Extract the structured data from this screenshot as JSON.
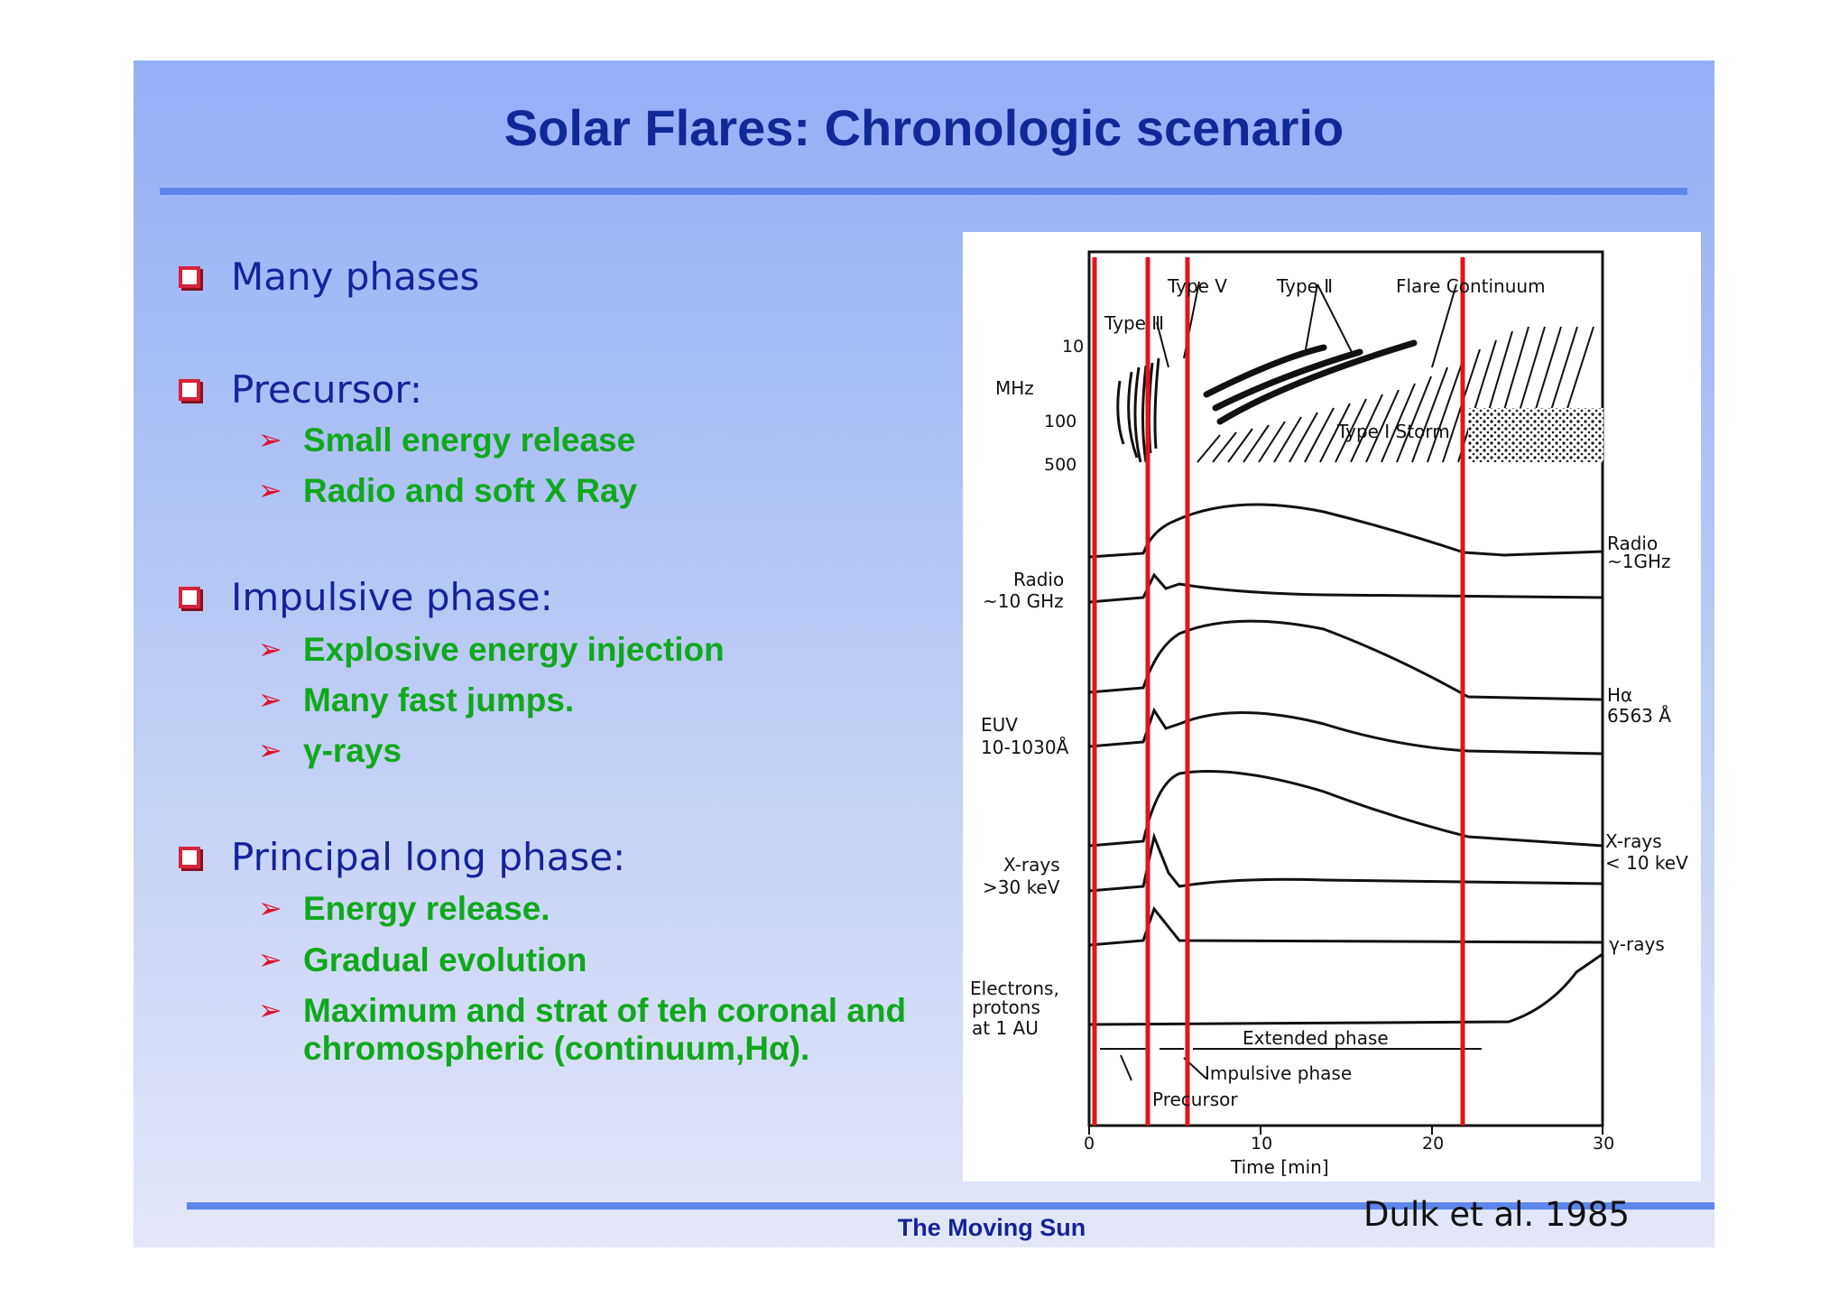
{
  "slide": {
    "title": "Solar Flares: Chronologic scenario",
    "footer": "The Moving Sun",
    "citation": "Dulk et al. 1985"
  },
  "bullets": [
    {
      "label": "Many phases",
      "subs": []
    },
    {
      "label": "Precursor:",
      "subs": [
        "Small energy release",
        "Radio and soft X Ray"
      ]
    },
    {
      "label": "Impulsive phase:",
      "subs": [
        "Explosive  energy injection",
        "Many fast jumps.",
        "γ-rays"
      ]
    },
    {
      "label": "Principal long phase:",
      "subs": [
        "Energy release.",
        "Gradual evolution",
        "Maximum and strat of teh coronal and",
        "chromospheric (continuum,Hα)."
      ]
    }
  ],
  "figure": {
    "radio_labels": {
      "type3": "Type Ⅲ",
      "type5": "Type Ⅴ",
      "type2": "Type Ⅱ",
      "flare_cont": "Flare Continuum",
      "type1_storm": "Type I Storm"
    },
    "mhz": "MHz",
    "f10": "10",
    "f100": "100",
    "f500": "500",
    "left_labels": {
      "radio_a": "Radio",
      "radio_b": "~10 GHz",
      "euv_a": "EUV",
      "euv_b": "10-1030Å",
      "xr_a": "X-rays",
      "xr_b": ">30 keV",
      "el_a": "Electrons,",
      "el_b": "protons",
      "el_c": "at 1 AU"
    },
    "right_labels": {
      "radio_a": "Radio",
      "radio_b": "~1GHz",
      "ha_a": "Hα",
      "ha_b": "6563 Å",
      "xr_a": "X-rays",
      "xr_b": "< 10 keV",
      "gamma": "γ-rays"
    },
    "phases": {
      "extended": "Extended phase",
      "impulsive": "Impulsive phase",
      "precursor": "Precursor"
    },
    "x_ticks": [
      "0",
      "10",
      "20",
      "30"
    ],
    "xlabel": "Time [min]",
    "red_markers_min": [
      0.3,
      3.3,
      5.6,
      21.8
    ]
  },
  "colors": {
    "title": "#0f2996",
    "bullet_text": "#15239a",
    "sub_text": "#10a81c",
    "arrow": "#e0102c",
    "marker": "#e3141c"
  }
}
